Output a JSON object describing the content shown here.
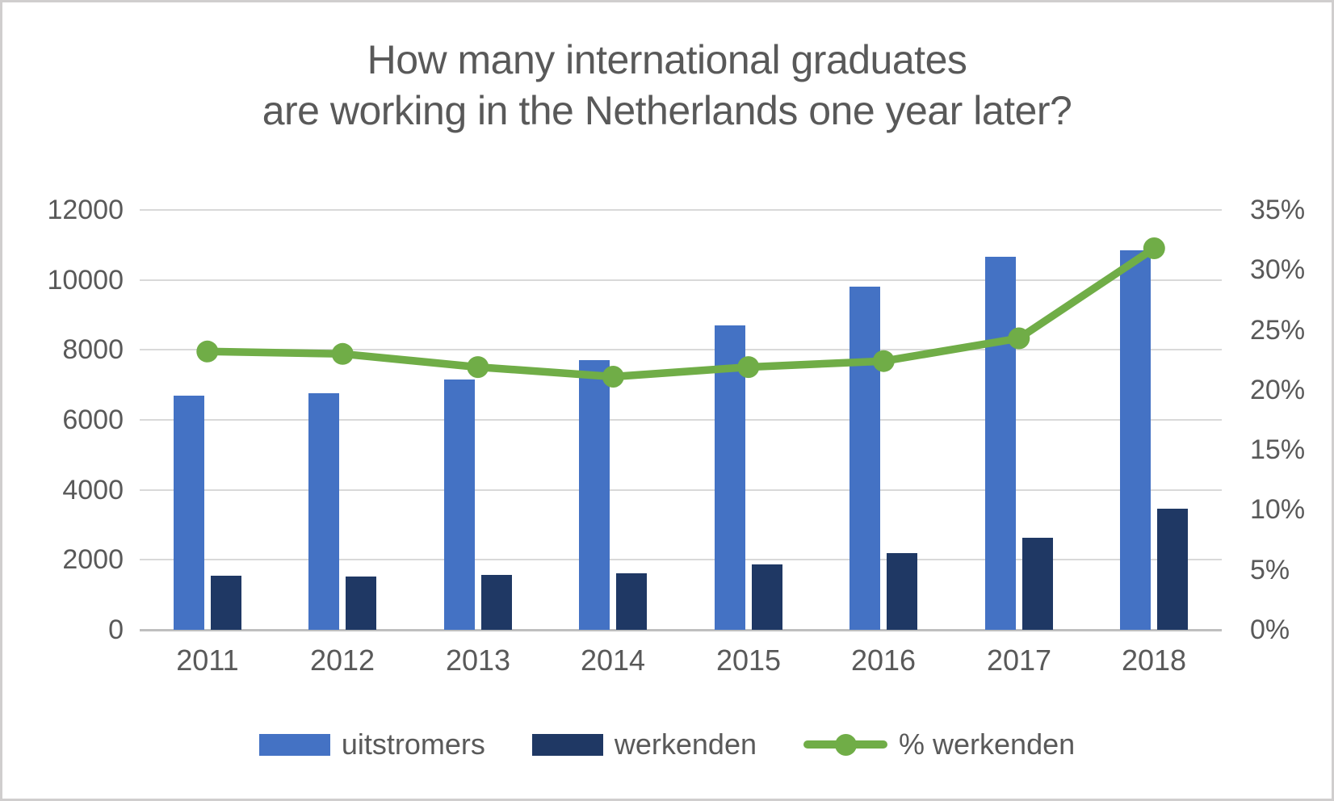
{
  "title": {
    "line1": "How many international graduates",
    "line2": "are working in the Netherlands one year later?"
  },
  "chart_data": {
    "type": "combo",
    "categories": [
      "2011",
      "2012",
      "2013",
      "2014",
      "2015",
      "2016",
      "2017",
      "2018"
    ],
    "series": [
      {
        "name": "uitstromers",
        "type": "bar",
        "axis": "left",
        "color": "#4472C4",
        "values": [
          6700,
          6750,
          7150,
          7700,
          8700,
          9800,
          10650,
          10850
        ]
      },
      {
        "name": "werkenden",
        "type": "bar",
        "axis": "left",
        "color": "#1F3864",
        "values": [
          1550,
          1520,
          1560,
          1610,
          1880,
          2190,
          2620,
          3470
        ]
      },
      {
        "name": "% werkenden",
        "type": "line",
        "axis": "right",
        "color": "#70AD47",
        "values": [
          23.2,
          23.0,
          21.9,
          21.1,
          21.9,
          22.4,
          24.3,
          31.8
        ]
      }
    ],
    "left_axis": {
      "min": 0,
      "max": 12000,
      "step": 2000,
      "ticks": [
        "0",
        "2000",
        "4000",
        "6000",
        "8000",
        "10000",
        "12000"
      ]
    },
    "right_axis": {
      "min": 0,
      "max": 35,
      "step": 5,
      "unit": "%",
      "ticks": [
        "0%",
        "5%",
        "10%",
        "15%",
        "20%",
        "25%",
        "30%",
        "35%"
      ]
    },
    "grid": "horizontal-on",
    "legend_position": "bottom"
  },
  "colors": {
    "bar_uitstromers": "#4472C4",
    "bar_werkenden": "#1F3864",
    "line_percent": "#70AD47",
    "grid": "#D9D9D9",
    "axis_line": "#BFBFBF",
    "text": "#595959",
    "background": "#FFFFFF",
    "border": "#D0CECE"
  }
}
